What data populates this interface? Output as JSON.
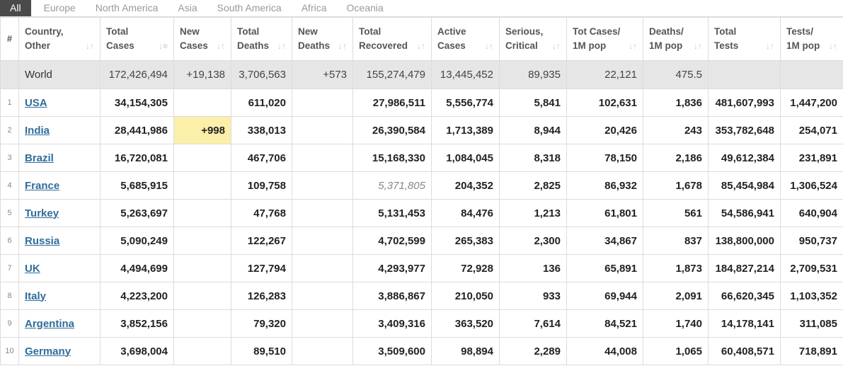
{
  "tabs": [
    "All",
    "Europe",
    "North America",
    "Asia",
    "South America",
    "Africa",
    "Oceania"
  ],
  "columns": [
    {
      "l1": "#",
      "l2": ""
    },
    {
      "l1": "Country,",
      "l2": "Other"
    },
    {
      "l1": "Total",
      "l2": "Cases"
    },
    {
      "l1": "New",
      "l2": "Cases"
    },
    {
      "l1": "Total",
      "l2": "Deaths"
    },
    {
      "l1": "New",
      "l2": "Deaths"
    },
    {
      "l1": "Total",
      "l2": "Recovered"
    },
    {
      "l1": "Active",
      "l2": "Cases"
    },
    {
      "l1": "Serious,",
      "l2": "Critical"
    },
    {
      "l1": "Tot Cases/",
      "l2": "1M pop"
    },
    {
      "l1": "Deaths/",
      "l2": "1M pop"
    },
    {
      "l1": "Total",
      "l2": "Tests"
    },
    {
      "l1": "Tests/",
      "l2": "1M pop"
    }
  ],
  "world": [
    "",
    "World",
    "172,426,494",
    "+19,138",
    "3,706,563",
    "+573",
    "155,274,479",
    "13,445,452",
    "89,935",
    "22,121",
    "475.5",
    "",
    ""
  ],
  "rows": [
    [
      "1",
      "USA",
      "34,154,305",
      "",
      "611,020",
      "",
      "27,986,511",
      "5,556,774",
      "5,841",
      "102,631",
      "1,836",
      "481,607,993",
      "1,447,200"
    ],
    [
      "2",
      "India",
      "28,441,986",
      "+998",
      "338,013",
      "",
      "26,390,584",
      "1,713,389",
      "8,944",
      "20,426",
      "243",
      "353,782,648",
      "254,071"
    ],
    [
      "3",
      "Brazil",
      "16,720,081",
      "",
      "467,706",
      "",
      "15,168,330",
      "1,084,045",
      "8,318",
      "78,150",
      "2,186",
      "49,612,384",
      "231,891"
    ],
    [
      "4",
      "France",
      "5,685,915",
      "",
      "109,758",
      "",
      "5,371,805",
      "204,352",
      "2,825",
      "86,932",
      "1,678",
      "85,454,984",
      "1,306,524"
    ],
    [
      "5",
      "Turkey",
      "5,263,697",
      "",
      "47,768",
      "",
      "5,131,453",
      "84,476",
      "1,213",
      "61,801",
      "561",
      "54,586,941",
      "640,904"
    ],
    [
      "6",
      "Russia",
      "5,090,249",
      "",
      "122,267",
      "",
      "4,702,599",
      "265,383",
      "2,300",
      "34,867",
      "837",
      "138,800,000",
      "950,737"
    ],
    [
      "7",
      "UK",
      "4,494,699",
      "",
      "127,794",
      "",
      "4,293,977",
      "72,928",
      "136",
      "65,891",
      "1,873",
      "184,827,214",
      "2,709,531"
    ],
    [
      "8",
      "Italy",
      "4,223,200",
      "",
      "126,283",
      "",
      "3,886,867",
      "210,050",
      "933",
      "69,944",
      "2,091",
      "66,620,345",
      "1,103,352"
    ],
    [
      "9",
      "Argentina",
      "3,852,156",
      "",
      "79,320",
      "",
      "3,409,316",
      "363,520",
      "7,614",
      "84,521",
      "1,740",
      "14,178,141",
      "311,085"
    ],
    [
      "10",
      "Germany",
      "3,698,004",
      "",
      "89,510",
      "",
      "3,509,600",
      "98,894",
      "2,289",
      "44,008",
      "1,065",
      "60,408,571",
      "718,891"
    ]
  ]
}
